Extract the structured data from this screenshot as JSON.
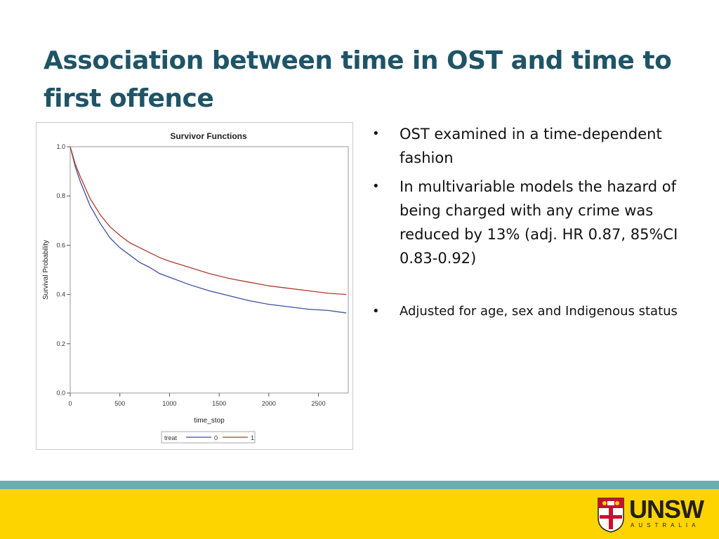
{
  "slide": {
    "title": "Association between time in OST and time to first offence"
  },
  "bullets": [
    {
      "text": "OST examined in a time-dependent fashion",
      "style": "main"
    },
    {
      "text": "In multivariable models the hazard of being charged with any crime was reduced by 13% (adj. HR 0.87, 85%CI 0.83-0.92)",
      "style": "main"
    },
    {
      "text": "Adjusted for age, sex and Indigenous status",
      "style": "small"
    }
  ],
  "bullet_glyph": "•",
  "chart_data": {
    "type": "line",
    "title": "Survivor Functions",
    "xlabel": "time_stop",
    "ylabel": "Survival Probability",
    "xlim": [
      0,
      2800
    ],
    "ylim": [
      0,
      1.0
    ],
    "xticks": [
      0,
      500,
      1000,
      1500,
      2000,
      2500
    ],
    "yticks": [
      0.0,
      0.2,
      0.4,
      0.6,
      0.8,
      1.0
    ],
    "xtick_labels": [
      "0",
      "500",
      "1000",
      "1500",
      "2000",
      "2500"
    ],
    "ytick_labels": [
      "0.0",
      "0.2",
      "0.4",
      "0.6",
      "0.8",
      "1.0"
    ],
    "legend": {
      "title": "treat",
      "position": "bottom"
    },
    "series": [
      {
        "name": "0",
        "color": "#3b4fa0",
        "x": [
          0,
          50,
          100,
          200,
          300,
          400,
          500,
          600,
          700,
          800,
          900,
          1000,
          1200,
          1400,
          1600,
          1800,
          2000,
          2200,
          2400,
          2600,
          2780
        ],
        "values": [
          1.0,
          0.92,
          0.86,
          0.76,
          0.69,
          0.63,
          0.59,
          0.56,
          0.53,
          0.51,
          0.485,
          0.47,
          0.44,
          0.415,
          0.395,
          0.375,
          0.36,
          0.35,
          0.34,
          0.335,
          0.325
        ]
      },
      {
        "name": "1",
        "color": "#b03a2e",
        "x": [
          0,
          50,
          100,
          200,
          300,
          400,
          500,
          600,
          700,
          800,
          900,
          1000,
          1200,
          1400,
          1600,
          1800,
          2000,
          2200,
          2400,
          2600,
          2780
        ],
        "values": [
          1.0,
          0.93,
          0.88,
          0.79,
          0.725,
          0.675,
          0.64,
          0.61,
          0.59,
          0.57,
          0.55,
          0.535,
          0.51,
          0.485,
          0.465,
          0.45,
          0.435,
          0.425,
          0.415,
          0.405,
          0.4
        ]
      }
    ]
  },
  "footer": {
    "logo_text": "UNSW",
    "logo_sub": "AUSTRALIA",
    "stripe_color": "#6cadb0",
    "bar_color": "#fdd400"
  }
}
